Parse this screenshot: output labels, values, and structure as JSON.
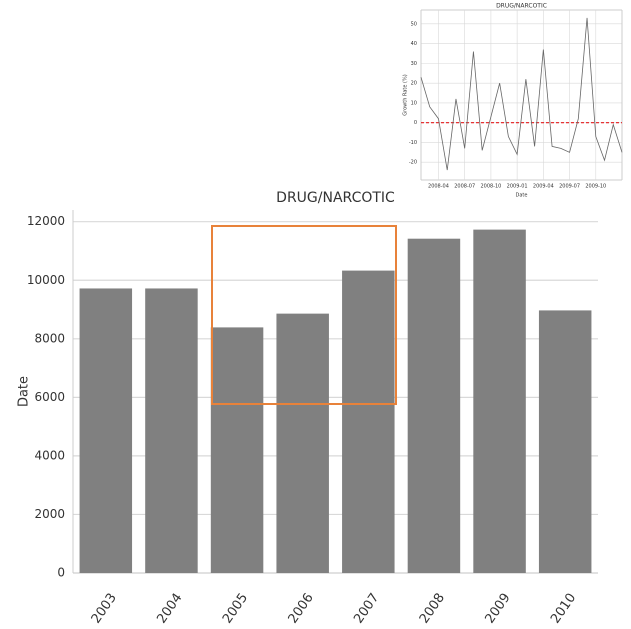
{
  "chart_data": [
    {
      "type": "bar",
      "title": "DRUG/NARCOTIC",
      "ylabel": "Date",
      "categories": [
        "2003",
        "2004",
        "2005",
        "2006",
        "2007",
        "2008",
        "2009",
        "2010"
      ],
      "values": [
        9720,
        9720,
        8390,
        8860,
        10330,
        11420,
        11730,
        8970
      ],
      "color": "#808080",
      "ylim": [
        0,
        12400
      ],
      "yticks": [
        0,
        2000,
        4000,
        6000,
        8000,
        10000,
        12000
      ],
      "grid": true
    },
    {
      "type": "line",
      "title": "DRUG/NARCOTIC",
      "ylabel": "Growth Rate (%)",
      "xlabel": "Date",
      "categories": [
        null,
        null,
        "2008-04",
        null,
        null,
        "2008-07",
        null,
        null,
        "2008-10",
        null,
        null,
        "2009-01",
        null,
        null,
        "2009-04",
        null,
        null,
        "2009-07",
        null,
        null,
        "2009-10",
        null,
        null,
        null
      ],
      "values": [
        23,
        8,
        2,
        -24,
        12,
        -13,
        36,
        -14,
        3,
        20,
        -7,
        -16,
        22,
        -12,
        37,
        -12,
        -13,
        -15,
        2,
        53,
        -7,
        -19,
        -1,
        -15
      ],
      "color": "#666666",
      "ylim": [
        -29,
        57
      ],
      "yticks": [
        -20,
        -10,
        0,
        10,
        20,
        30,
        40,
        50
      ],
      "grid": true,
      "reference_line": {
        "value": 0,
        "color": "#e41a1c"
      }
    }
  ]
}
